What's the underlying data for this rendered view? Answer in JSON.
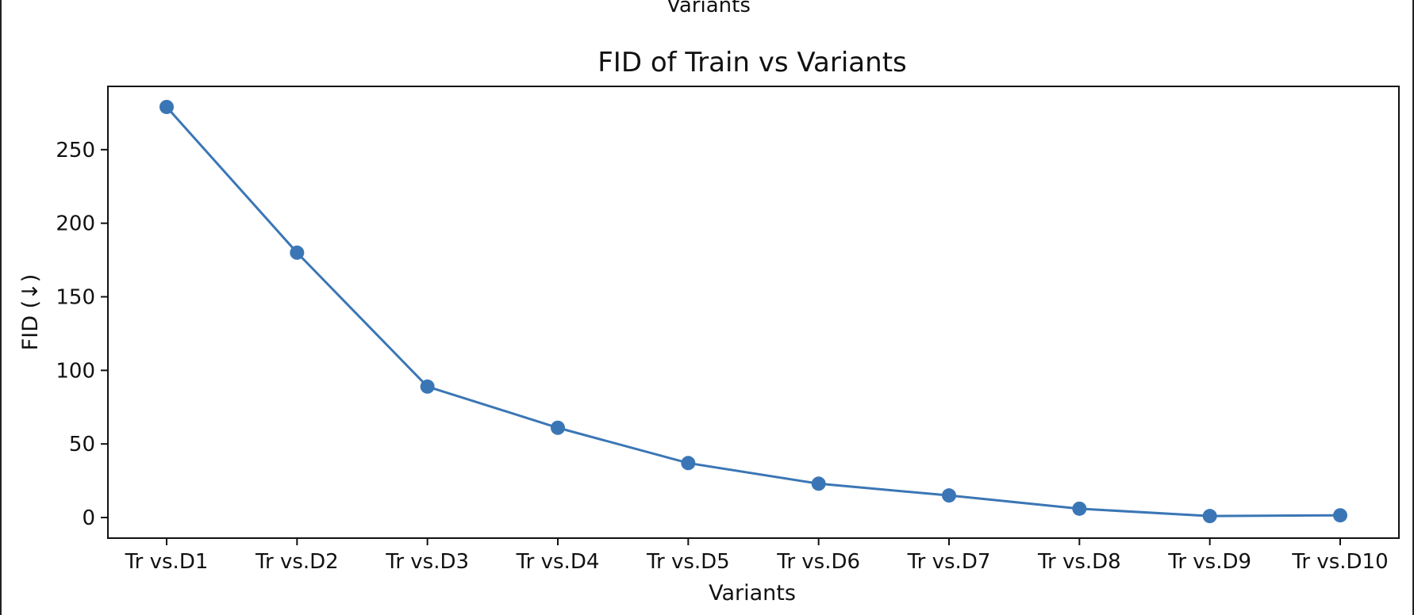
{
  "header_cut_label": "Variants",
  "chart_data": {
    "type": "line",
    "title": "FID of Train vs Variants",
    "xlabel": "Variants",
    "ylabel": "FID (↓)",
    "categories": [
      "Tr vs.D1",
      "Tr vs.D2",
      "Tr vs.D3",
      "Tr vs.D4",
      "Tr vs.D5",
      "Tr vs.D6",
      "Tr vs.D7",
      "Tr vs.D8",
      "Tr vs.D9",
      "Tr vs.D10"
    ],
    "series": [
      {
        "values": [
          279,
          180,
          89,
          61,
          37,
          23,
          15,
          6,
          1,
          1.5
        ]
      }
    ],
    "yticks": [
      0,
      50,
      100,
      150,
      200,
      250
    ],
    "ylim": [
      -14,
      293
    ],
    "grid": false,
    "line_color": "#3a76b5",
    "marker": "circle"
  }
}
